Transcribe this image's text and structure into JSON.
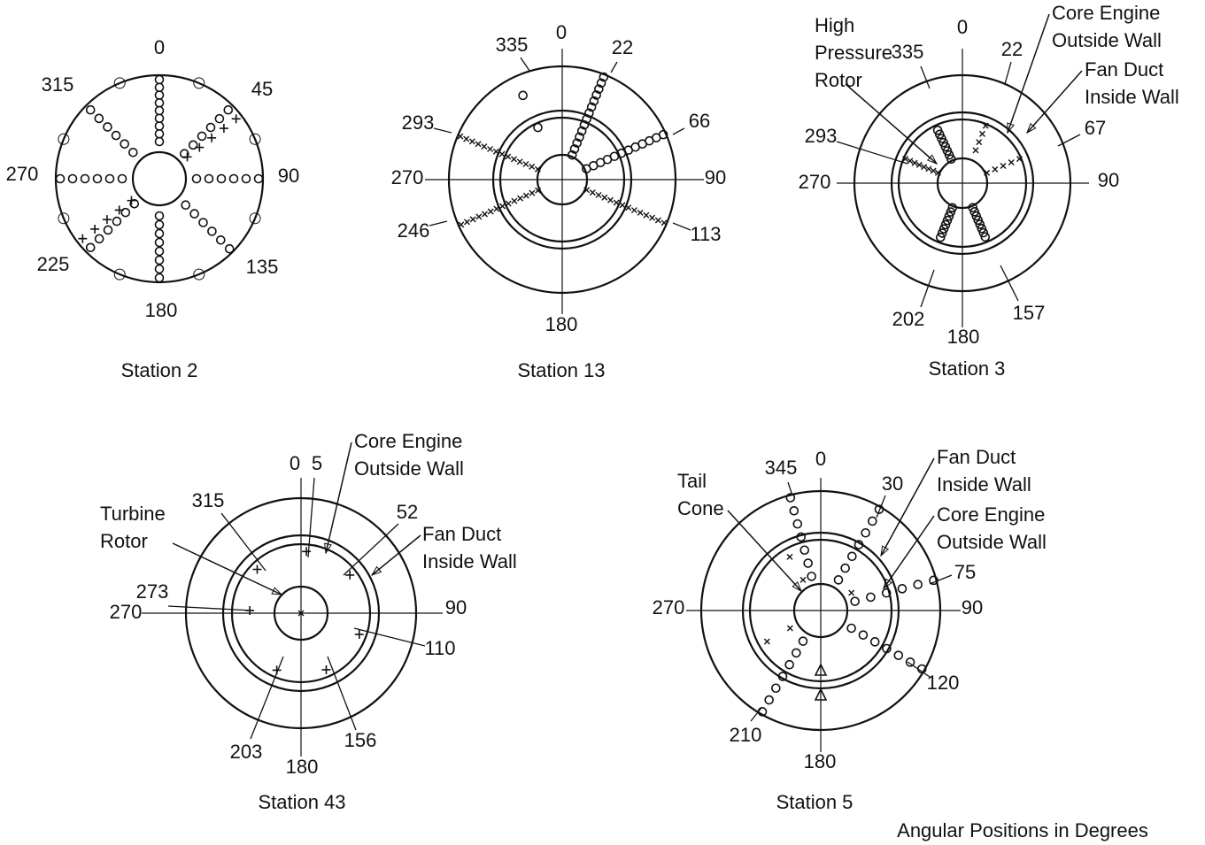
{
  "stations": [
    {
      "title": "Station 2",
      "angle_labels": [
        "0",
        "45",
        "90",
        "135",
        "180",
        "225",
        "270",
        "315"
      ],
      "annotations": []
    },
    {
      "title": "Station 13",
      "angle_labels": [
        "0",
        "22",
        "66",
        "90",
        "113",
        "180",
        "246",
        "270",
        "293",
        "335"
      ],
      "annotations": []
    },
    {
      "title": "Station 3",
      "angle_labels": [
        "0",
        "22",
        "67",
        "90",
        "157",
        "180",
        "202",
        "270",
        "293",
        "335"
      ],
      "annotations": [
        [
          "High",
          "Pressure",
          "Rotor"
        ],
        [
          "Core Engine",
          "Outside Wall"
        ],
        [
          "Fan Duct",
          "Inside Wall"
        ]
      ]
    },
    {
      "title": "Station 43",
      "angle_labels": [
        "0",
        "5",
        "52",
        "90",
        "110",
        "156",
        "180",
        "203",
        "270",
        "273",
        "315"
      ],
      "annotations": [
        [
          "Core Engine",
          "Outside Wall"
        ],
        [
          "Fan Duct",
          "Inside Wall"
        ],
        [
          "Turbine",
          "Rotor"
        ]
      ]
    },
    {
      "title": "Station 5",
      "angle_labels": [
        "0",
        "30",
        "75",
        "90",
        "120",
        "180",
        "210",
        "270",
        "345"
      ],
      "annotations": [
        [
          "Tail",
          "Cone"
        ],
        [
          "Fan Duct",
          "Inside Wall"
        ],
        [
          "Core Engine",
          "Outside Wall"
        ]
      ]
    }
  ],
  "footer": "Angular Positions in Degrees"
}
